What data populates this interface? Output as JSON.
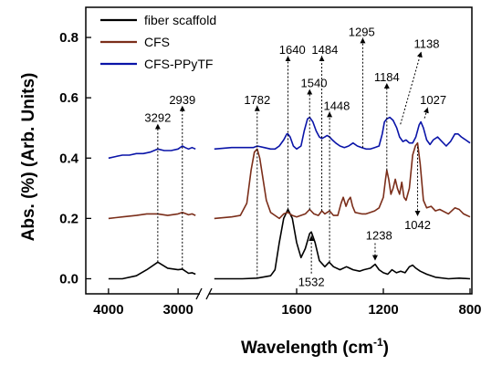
{
  "chart_data": {
    "type": "line",
    "xlabel": "Wavelength (cm",
    "xlabel_sup": "-1",
    "xlabel_end": ")",
    "ylabel": "Abs. (%) (Arb. Units)",
    "ylim": [
      -0.05,
      0.9
    ],
    "y_ticks": [
      "0.0",
      "0.2",
      "0.4",
      "0.6",
      "0.8"
    ],
    "y_tick_values": [
      0.0,
      0.2,
      0.4,
      0.6,
      0.8
    ],
    "x_break": true,
    "x_segment_left": {
      "range": [
        4300,
        2700
      ],
      "ticks": [
        4000,
        3000
      ],
      "tick_labels": [
        "4000",
        "3000"
      ]
    },
    "x_segment_right": {
      "range": [
        2000,
        800
      ],
      "ticks": [
        1600,
        1200,
        800
      ],
      "tick_labels": [
        "1600",
        "1200",
        "800"
      ]
    },
    "legend": {
      "position": "top-left",
      "entries": [
        "fiber scaffold",
        "CFS",
        "CFS-PPyTF"
      ]
    },
    "colors": {
      "fiber": "#000000",
      "cfs": "#7b2e1a",
      "ppy": "#0a14a8",
      "annotation": "#000000"
    },
    "series": [
      {
        "name": "fiber scaffold",
        "color": "#000000",
        "left": [
          [
            4000,
            0.0
          ],
          [
            3800,
            0.0
          ],
          [
            3600,
            0.01
          ],
          [
            3450,
            0.03
          ],
          [
            3292,
            0.055
          ],
          [
            3150,
            0.035
          ],
          [
            3000,
            0.03
          ],
          [
            2939,
            0.032
          ],
          [
            2850,
            0.018
          ],
          [
            2800,
            0.02
          ],
          [
            2750,
            0.015
          ]
        ],
        "right": [
          [
            1980,
            0.0
          ],
          [
            1900,
            0.0
          ],
          [
            1850,
            0.0
          ],
          [
            1782,
            0.002
          ],
          [
            1720,
            0.01
          ],
          [
            1700,
            0.03
          ],
          [
            1680,
            0.12
          ],
          [
            1660,
            0.2
          ],
          [
            1640,
            0.23
          ],
          [
            1620,
            0.2
          ],
          [
            1600,
            0.12
          ],
          [
            1580,
            0.07
          ],
          [
            1560,
            0.1
          ],
          [
            1540,
            0.15
          ],
          [
            1532,
            0.155
          ],
          [
            1515,
            0.12
          ],
          [
            1495,
            0.06
          ],
          [
            1470,
            0.04
          ],
          [
            1450,
            0.055
          ],
          [
            1430,
            0.04
          ],
          [
            1400,
            0.03
          ],
          [
            1370,
            0.04
          ],
          [
            1340,
            0.03
          ],
          [
            1310,
            0.025
          ],
          [
            1290,
            0.03
          ],
          [
            1260,
            0.035
          ],
          [
            1238,
            0.048
          ],
          [
            1220,
            0.03
          ],
          [
            1200,
            0.02
          ],
          [
            1180,
            0.015
          ],
          [
            1160,
            0.03
          ],
          [
            1140,
            0.02
          ],
          [
            1120,
            0.025
          ],
          [
            1100,
            0.02
          ],
          [
            1080,
            0.04
          ],
          [
            1065,
            0.045
          ],
          [
            1050,
            0.035
          ],
          [
            1030,
            0.025
          ],
          [
            1000,
            0.015
          ],
          [
            960,
            0.005
          ],
          [
            900,
            0.0
          ],
          [
            850,
            0.002
          ],
          [
            800,
            0.0
          ]
        ]
      },
      {
        "name": "CFS",
        "color": "#7b2e1a",
        "left": [
          [
            4000,
            0.2
          ],
          [
            3800,
            0.205
          ],
          [
            3600,
            0.21
          ],
          [
            3450,
            0.215
          ],
          [
            3292,
            0.215
          ],
          [
            3150,
            0.21
          ],
          [
            3000,
            0.215
          ],
          [
            2939,
            0.22
          ],
          [
            2850,
            0.212
          ],
          [
            2800,
            0.215
          ],
          [
            2750,
            0.21
          ]
        ],
        "right": [
          [
            1980,
            0.2
          ],
          [
            1900,
            0.205
          ],
          [
            1860,
            0.21
          ],
          [
            1830,
            0.25
          ],
          [
            1810,
            0.36
          ],
          [
            1795,
            0.42
          ],
          [
            1782,
            0.43
          ],
          [
            1770,
            0.4
          ],
          [
            1755,
            0.33
          ],
          [
            1740,
            0.26
          ],
          [
            1720,
            0.22
          ],
          [
            1700,
            0.21
          ],
          [
            1680,
            0.2
          ],
          [
            1660,
            0.215
          ],
          [
            1640,
            0.22
          ],
          [
            1620,
            0.21
          ],
          [
            1600,
            0.205
          ],
          [
            1560,
            0.215
          ],
          [
            1540,
            0.23
          ],
          [
            1520,
            0.215
          ],
          [
            1500,
            0.21
          ],
          [
            1484,
            0.225
          ],
          [
            1470,
            0.215
          ],
          [
            1448,
            0.225
          ],
          [
            1430,
            0.21
          ],
          [
            1410,
            0.21
          ],
          [
            1395,
            0.25
          ],
          [
            1385,
            0.27
          ],
          [
            1372,
            0.24
          ],
          [
            1362,
            0.26
          ],
          [
            1352,
            0.27
          ],
          [
            1342,
            0.24
          ],
          [
            1330,
            0.22
          ],
          [
            1300,
            0.215
          ],
          [
            1280,
            0.215
          ],
          [
            1260,
            0.22
          ],
          [
            1240,
            0.225
          ],
          [
            1220,
            0.235
          ],
          [
            1200,
            0.27
          ],
          [
            1190,
            0.33
          ],
          [
            1184,
            0.36
          ],
          [
            1175,
            0.33
          ],
          [
            1165,
            0.28
          ],
          [
            1155,
            0.3
          ],
          [
            1145,
            0.33
          ],
          [
            1135,
            0.3
          ],
          [
            1125,
            0.28
          ],
          [
            1115,
            0.32
          ],
          [
            1105,
            0.27
          ],
          [
            1095,
            0.26
          ],
          [
            1080,
            0.3
          ],
          [
            1065,
            0.41
          ],
          [
            1052,
            0.44
          ],
          [
            1042,
            0.45
          ],
          [
            1030,
            0.38
          ],
          [
            1015,
            0.26
          ],
          [
            1000,
            0.235
          ],
          [
            980,
            0.24
          ],
          [
            960,
            0.225
          ],
          [
            940,
            0.23
          ],
          [
            900,
            0.215
          ],
          [
            870,
            0.235
          ],
          [
            850,
            0.23
          ],
          [
            830,
            0.215
          ],
          [
            800,
            0.205
          ]
        ]
      },
      {
        "name": "CFS-PPyTF",
        "color": "#0a14a8",
        "left": [
          [
            4000,
            0.4
          ],
          [
            3900,
            0.405
          ],
          [
            3800,
            0.41
          ],
          [
            3700,
            0.41
          ],
          [
            3600,
            0.415
          ],
          [
            3500,
            0.415
          ],
          [
            3400,
            0.42
          ],
          [
            3292,
            0.43
          ],
          [
            3200,
            0.425
          ],
          [
            3100,
            0.425
          ],
          [
            3000,
            0.43
          ],
          [
            2939,
            0.44
          ],
          [
            2900,
            0.435
          ],
          [
            2850,
            0.43
          ],
          [
            2800,
            0.435
          ],
          [
            2750,
            0.43
          ]
        ],
        "right": [
          [
            1980,
            0.43
          ],
          [
            1900,
            0.435
          ],
          [
            1850,
            0.435
          ],
          [
            1800,
            0.435
          ],
          [
            1782,
            0.44
          ],
          [
            1750,
            0.435
          ],
          [
            1720,
            0.43
          ],
          [
            1700,
            0.43
          ],
          [
            1680,
            0.44
          ],
          [
            1660,
            0.46
          ],
          [
            1645,
            0.48
          ],
          [
            1640,
            0.48
          ],
          [
            1630,
            0.47
          ],
          [
            1615,
            0.44
          ],
          [
            1600,
            0.43
          ],
          [
            1580,
            0.44
          ],
          [
            1565,
            0.49
          ],
          [
            1550,
            0.53
          ],
          [
            1540,
            0.535
          ],
          [
            1525,
            0.52
          ],
          [
            1510,
            0.49
          ],
          [
            1495,
            0.47
          ],
          [
            1484,
            0.465
          ],
          [
            1470,
            0.47
          ],
          [
            1460,
            0.475
          ],
          [
            1448,
            0.47
          ],
          [
            1435,
            0.46
          ],
          [
            1420,
            0.45
          ],
          [
            1400,
            0.44
          ],
          [
            1380,
            0.435
          ],
          [
            1360,
            0.44
          ],
          [
            1340,
            0.45
          ],
          [
            1320,
            0.44
          ],
          [
            1300,
            0.435
          ],
          [
            1280,
            0.43
          ],
          [
            1260,
            0.43
          ],
          [
            1240,
            0.435
          ],
          [
            1220,
            0.44
          ],
          [
            1205,
            0.48
          ],
          [
            1195,
            0.52
          ],
          [
            1184,
            0.53
          ],
          [
            1170,
            0.535
          ],
          [
            1155,
            0.525
          ],
          [
            1138,
            0.5
          ],
          [
            1125,
            0.47
          ],
          [
            1110,
            0.455
          ],
          [
            1095,
            0.46
          ],
          [
            1080,
            0.45
          ],
          [
            1065,
            0.45
          ],
          [
            1050,
            0.47
          ],
          [
            1035,
            0.51
          ],
          [
            1027,
            0.52
          ],
          [
            1015,
            0.5
          ],
          [
            1000,
            0.46
          ],
          [
            985,
            0.445
          ],
          [
            970,
            0.46
          ],
          [
            950,
            0.47
          ],
          [
            930,
            0.455
          ],
          [
            910,
            0.44
          ],
          [
            890,
            0.455
          ],
          [
            870,
            0.48
          ],
          [
            855,
            0.48
          ],
          [
            840,
            0.47
          ],
          [
            820,
            0.46
          ],
          [
            800,
            0.45
          ]
        ]
      }
    ],
    "annotations": [
      {
        "label": "3292",
        "seg": "left",
        "x": 3292,
        "y1": 0.055,
        "y2": 0.43,
        "tx": 3292,
        "ty": 0.52
      },
      {
        "label": "2939",
        "seg": "left",
        "x": 2939,
        "y1": 0.032,
        "y2": 0.44,
        "tx": 2939,
        "ty": 0.58
      },
      {
        "label": "1782",
        "seg": "right",
        "x": 1782,
        "y1": 0.0,
        "y2": 0.43,
        "tx": 1782,
        "ty": 0.58
      },
      {
        "label": "1640",
        "seg": "right",
        "x": 1640,
        "y1": 0.23,
        "y2": 0.48,
        "tx": 1620,
        "ty": 0.745
      },
      {
        "label": "1540",
        "seg": "right",
        "x": 1540,
        "y1": 0.23,
        "y2": 0.535,
        "tx": 1520,
        "ty": 0.635
      },
      {
        "label": "1484",
        "seg": "right",
        "x": 1484,
        "y1": 0.225,
        "y2": 0.465,
        "tx": 1470,
        "ty": 0.745
      },
      {
        "label": "1448",
        "seg": "right",
        "x": 1448,
        "y1": 0.055,
        "y2": 0.47,
        "tx": 1415,
        "ty": 0.56
      },
      {
        "label": "1295",
        "seg": "right",
        "x": 1295,
        "y1": 0.435,
        "y2": 0.44,
        "tx": 1300,
        "ty": 0.805
      },
      {
        "label": "1184",
        "seg": "right",
        "x": 1184,
        "y1": 0.36,
        "y2": 0.53,
        "tx": 1184,
        "ty": 0.655
      },
      {
        "label": "1138",
        "seg": "right",
        "x": 1138,
        "y1": 0.5,
        "y2": 0.5,
        "tx": 1000,
        "ty": 0.765
      },
      {
        "label": "1027",
        "seg": "right",
        "x": 1027,
        "y1": 0.52,
        "y2": 0.52,
        "tx": 970,
        "ty": 0.58
      },
      {
        "label": "1042",
        "seg": "right",
        "x": 1042,
        "y1": 0.45,
        "y2": 0.45,
        "tx": 1042,
        "ty": 0.165
      },
      {
        "label": "1532",
        "seg": "right",
        "x": 1532,
        "y1": 0.155,
        "y2": 0.155,
        "tx": 1532,
        "ty": -0.025
      },
      {
        "label": "1238",
        "seg": "right",
        "x": 1238,
        "y1": 0.048,
        "y2": 0.048,
        "tx": 1220,
        "ty": 0.13
      }
    ]
  }
}
